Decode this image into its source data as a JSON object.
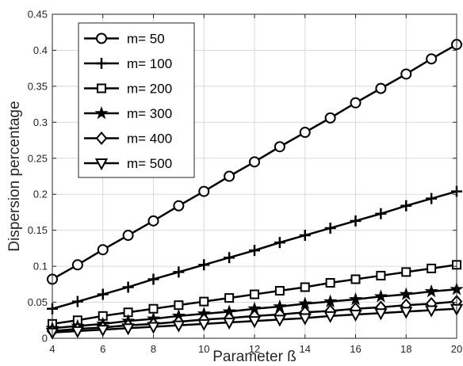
{
  "chart_data": {
    "type": "line",
    "title": "",
    "xlabel": "Parameter  ß",
    "ylabel": "Dispersion percentage",
    "xlim": [
      4,
      20
    ],
    "ylim": [
      0,
      0.45
    ],
    "xticks": [
      "4",
      "6",
      "8",
      "10",
      "12",
      "14",
      "16",
      "18",
      "20"
    ],
    "yticks": [
      "0",
      "0.05",
      "0.1",
      "0.15",
      "0.2",
      "0.25",
      "0.3",
      "0.35",
      "0.4",
      "0.45"
    ],
    "grid": true,
    "legend_position": "top-left",
    "x": [
      4,
      5,
      6,
      7,
      8,
      9,
      10,
      11,
      12,
      13,
      14,
      15,
      16,
      17,
      18,
      19,
      20
    ],
    "series": [
      {
        "name": "m= 50",
        "marker": "circle",
        "values": [
          0.082,
          0.102,
          0.123,
          0.143,
          0.163,
          0.184,
          0.204,
          0.225,
          0.245,
          0.266,
          0.286,
          0.306,
          0.327,
          0.347,
          0.367,
          0.388,
          0.408
        ]
      },
      {
        "name": "m= 100",
        "marker": "plus",
        "values": [
          0.041,
          0.051,
          0.061,
          0.071,
          0.082,
          0.092,
          0.102,
          0.112,
          0.122,
          0.133,
          0.143,
          0.153,
          0.163,
          0.173,
          0.184,
          0.194,
          0.204
        ]
      },
      {
        "name": "m= 200",
        "marker": "square",
        "values": [
          0.02,
          0.025,
          0.031,
          0.036,
          0.041,
          0.046,
          0.051,
          0.056,
          0.061,
          0.066,
          0.071,
          0.077,
          0.082,
          0.087,
          0.092,
          0.097,
          0.102
        ]
      },
      {
        "name": "m= 300",
        "marker": "star",
        "values": [
          0.014,
          0.017,
          0.02,
          0.024,
          0.027,
          0.031,
          0.034,
          0.037,
          0.041,
          0.044,
          0.048,
          0.051,
          0.054,
          0.058,
          0.061,
          0.065,
          0.068
        ]
      },
      {
        "name": "m= 400",
        "marker": "diamond",
        "values": [
          0.01,
          0.013,
          0.015,
          0.018,
          0.02,
          0.023,
          0.026,
          0.028,
          0.031,
          0.033,
          0.036,
          0.038,
          0.041,
          0.043,
          0.046,
          0.048,
          0.051
        ]
      },
      {
        "name": "m= 500",
        "marker": "triangle-down",
        "values": [
          0.008,
          0.01,
          0.012,
          0.014,
          0.016,
          0.018,
          0.02,
          0.022,
          0.024,
          0.026,
          0.028,
          0.031,
          0.033,
          0.035,
          0.037,
          0.039,
          0.041
        ]
      }
    ],
    "line_color": "#000000"
  }
}
